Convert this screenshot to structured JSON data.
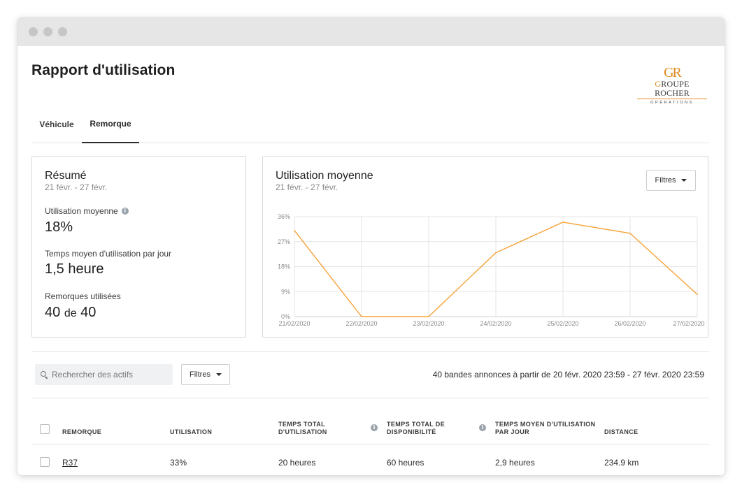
{
  "page": {
    "title": "Rapport d'utilisation"
  },
  "logo": {
    "mark": "GR",
    "name_first": "G",
    "name_rest": "ROUPE ROCHER",
    "subtitle": "OPÉRATIONS"
  },
  "tabs": [
    {
      "label": "Véhicule",
      "active": false
    },
    {
      "label": "Remorque",
      "active": true
    }
  ],
  "summary": {
    "title": "Résumé",
    "date_range": "21 févr. - 27 févr.",
    "metrics": [
      {
        "label": "Utilisation moyenne",
        "value": "18%",
        "has_info": true
      },
      {
        "label": "Temps moyen d'utilisation par jour",
        "value": "1,5 heure"
      },
      {
        "label": "Remorques utilisées",
        "value_used": "40",
        "value_sep": "de",
        "value_total": "40"
      }
    ]
  },
  "usage_chart": {
    "title": "Utilisation moyenne",
    "date_range": "21 févr. - 27 févr.",
    "filter_label": "Filtres"
  },
  "chart_data": {
    "type": "line",
    "title": "Utilisation moyenne",
    "x": [
      "21/02/2020",
      "22/02/2020",
      "23/02/2020",
      "24/02/2020",
      "25/02/2020",
      "26/02/2020",
      "27/02/2020"
    ],
    "y_ticks": [
      "36%",
      "27%",
      "18%",
      "9%",
      "0%"
    ],
    "ylim": [
      0,
      36
    ],
    "series": [
      {
        "values": [
          31,
          0,
          0,
          23,
          34,
          30,
          8
        ],
        "color": "#f5a33a"
      }
    ],
    "grid": true
  },
  "assets": {
    "search_placeholder": "Rechercher des actifs",
    "filter_label": "Filtres",
    "range_text": "40 bandes annonces à partir de 20 févr. 2020 23:59 - 27 févr. 2020 23:59"
  },
  "table": {
    "headers": {
      "trailer": "REMORQUE",
      "utilisation": "UTILISATION",
      "total_time_1": "TEMPS TOTAL",
      "total_time_2": "D'UTILISATION",
      "availability_1": "TEMPS TOTAL DE",
      "availability_2": "DISPONIBILITÉ",
      "avg_1": "TEMPS MOYEN D'UTILISATION",
      "avg_2": "PAR JOUR",
      "distance": "DISTANCE"
    },
    "rows": [
      {
        "trailer": "R37",
        "utilisation": "33%",
        "total_time": "20 heures",
        "availability": "60 heures",
        "avg_per_day": "2,9 heures",
        "distance": "234.9 km"
      }
    ]
  }
}
